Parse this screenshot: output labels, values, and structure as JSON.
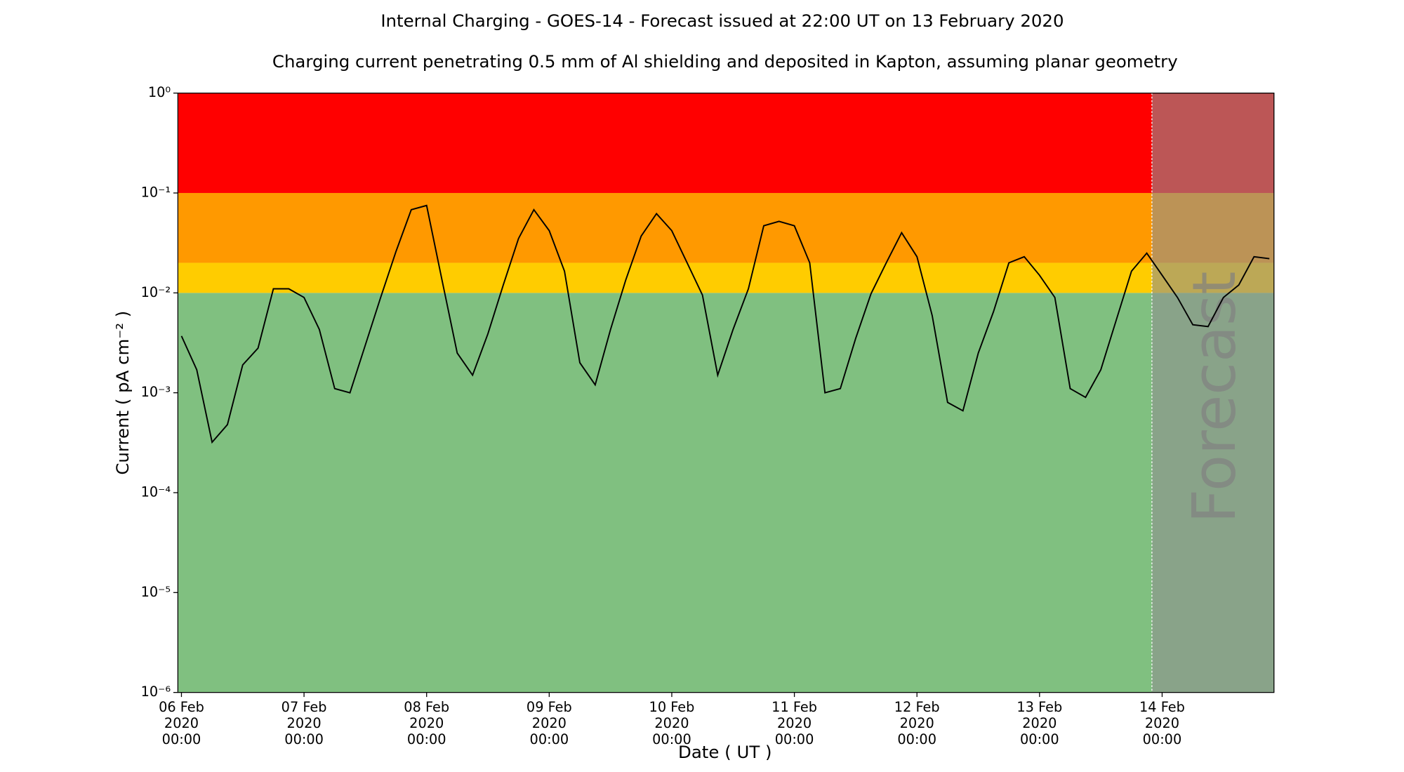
{
  "chart_data": {
    "type": "line",
    "title": "Internal Charging - GOES-14 - Forecast issued at 22:00 UT on 13 February 2020",
    "subtitle": "Charging current penetrating 0.5 mm of Al shielding and deposited in Kapton, assuming planar geometry",
    "x_label": "Date ( UT )",
    "y_label": "Current ( pA cm⁻² )",
    "log_y": true,
    "ylim": [
      1e-06,
      1
    ],
    "yticks": [
      {
        "value": 1e-06,
        "label": "10⁻⁶"
      },
      {
        "value": 1e-05,
        "label": "10⁻⁵"
      },
      {
        "value": 0.0001,
        "label": "10⁻⁴"
      },
      {
        "value": 0.001,
        "label": "10⁻³"
      },
      {
        "value": 0.01,
        "label": "10⁻²"
      },
      {
        "value": 0.1,
        "label": "10⁻¹"
      },
      {
        "value": 1,
        "label": "10⁰"
      }
    ],
    "xlim": [
      "2020-02-05T23:18",
      "2020-02-14T21:54"
    ],
    "xticks": [
      {
        "value": "2020-02-06T00:00",
        "label": [
          "06 Feb",
          "2020",
          "00:00"
        ]
      },
      {
        "value": "2020-02-07T00:00",
        "label": [
          "07 Feb",
          "2020",
          "00:00"
        ]
      },
      {
        "value": "2020-02-08T00:00",
        "label": [
          "08 Feb",
          "2020",
          "00:00"
        ]
      },
      {
        "value": "2020-02-09T00:00",
        "label": [
          "09 Feb",
          "2020",
          "00:00"
        ]
      },
      {
        "value": "2020-02-10T00:00",
        "label": [
          "10 Feb",
          "2020",
          "00:00"
        ]
      },
      {
        "value": "2020-02-11T00:00",
        "label": [
          "11 Feb",
          "2020",
          "00:00"
        ]
      },
      {
        "value": "2020-02-12T00:00",
        "label": [
          "12 Feb",
          "2020",
          "00:00"
        ]
      },
      {
        "value": "2020-02-13T00:00",
        "label": [
          "13 Feb",
          "2020",
          "00:00"
        ]
      },
      {
        "value": "2020-02-14T00:00",
        "label": [
          "14 Feb",
          "2020",
          "00:00"
        ]
      }
    ],
    "bands": [
      {
        "from": 1e-06,
        "to": 0.01,
        "color": "#80c080"
      },
      {
        "from": 0.01,
        "to": 0.02,
        "color": "#ffcc00"
      },
      {
        "from": 0.02,
        "to": 0.1,
        "color": "#ff9900"
      },
      {
        "from": 0.1,
        "to": 1,
        "color": "#ff0000"
      }
    ],
    "forecast_start": "2020-02-13T22:00",
    "forecast_label": "Forecast",
    "forecast_shade": "#909090",
    "x": [
      "2020-02-06T00:00",
      "2020-02-06T03:00",
      "2020-02-06T06:00",
      "2020-02-06T09:00",
      "2020-02-06T12:00",
      "2020-02-06T15:00",
      "2020-02-06T18:00",
      "2020-02-06T21:00",
      "2020-02-07T00:00",
      "2020-02-07T03:00",
      "2020-02-07T06:00",
      "2020-02-07T09:00",
      "2020-02-07T12:00",
      "2020-02-07T15:00",
      "2020-02-07T18:00",
      "2020-02-07T21:00",
      "2020-02-08T00:00",
      "2020-02-08T03:00",
      "2020-02-08T06:00",
      "2020-02-08T09:00",
      "2020-02-08T12:00",
      "2020-02-08T15:00",
      "2020-02-08T18:00",
      "2020-02-08T21:00",
      "2020-02-09T00:00",
      "2020-02-09T03:00",
      "2020-02-09T06:00",
      "2020-02-09T09:00",
      "2020-02-09T12:00",
      "2020-02-09T15:00",
      "2020-02-09T18:00",
      "2020-02-09T21:00",
      "2020-02-10T00:00",
      "2020-02-10T03:00",
      "2020-02-10T06:00",
      "2020-02-10T09:00",
      "2020-02-10T12:00",
      "2020-02-10T15:00",
      "2020-02-10T18:00",
      "2020-02-10T21:00",
      "2020-02-11T00:00",
      "2020-02-11T03:00",
      "2020-02-11T06:00",
      "2020-02-11T09:00",
      "2020-02-11T12:00",
      "2020-02-11T15:00",
      "2020-02-11T18:00",
      "2020-02-11T21:00",
      "2020-02-12T00:00",
      "2020-02-12T03:00",
      "2020-02-12T06:00",
      "2020-02-12T09:00",
      "2020-02-12T12:00",
      "2020-02-12T15:00",
      "2020-02-12T18:00",
      "2020-02-12T21:00",
      "2020-02-13T00:00",
      "2020-02-13T03:00",
      "2020-02-13T06:00",
      "2020-02-13T09:00",
      "2020-02-13T12:00",
      "2020-02-13T15:00",
      "2020-02-13T18:00",
      "2020-02-13T21:00",
      "2020-02-14T00:00",
      "2020-02-14T03:00",
      "2020-02-14T06:00",
      "2020-02-14T09:00",
      "2020-02-14T12:00",
      "2020-02-14T15:00",
      "2020-02-14T18:00",
      "2020-02-14T21:00"
    ],
    "series": [
      {
        "color": "#000000",
        "values": [
          0.0037,
          0.0017,
          0.00032,
          0.00048,
          0.0019,
          0.0028,
          0.011,
          0.011,
          0.009,
          0.0043,
          0.0011,
          0.001,
          0.003,
          0.009,
          0.026,
          0.068,
          0.075,
          0.0135,
          0.0025,
          0.0015,
          0.0039,
          0.012,
          0.035,
          0.068,
          0.042,
          0.0165,
          0.002,
          0.0012,
          0.0043,
          0.0135,
          0.037,
          0.062,
          0.042,
          0.02,
          0.0095,
          0.0015,
          0.0043,
          0.011,
          0.047,
          0.052,
          0.047,
          0.02,
          0.001,
          0.0011,
          0.0035,
          0.0098,
          0.02,
          0.04,
          0.023,
          0.0059,
          0.0008,
          0.00066,
          0.0025,
          0.0065,
          0.02,
          0.023,
          0.015,
          0.009,
          0.0011,
          0.0009,
          0.0017,
          0.0053,
          0.0165,
          0.025,
          0.015,
          0.009,
          0.0048,
          0.0046,
          0.009,
          0.012,
          0.023,
          0.022
        ]
      }
    ]
  }
}
